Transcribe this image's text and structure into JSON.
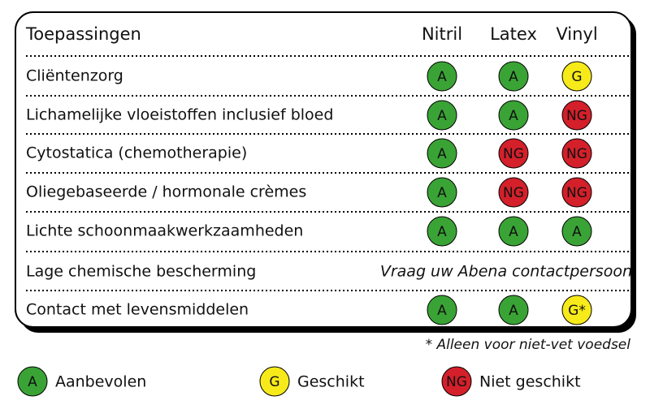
{
  "table": {
    "header": [
      "Toepassingen",
      "Nitril",
      "Latex",
      "Vinyl"
    ],
    "rows": [
      {
        "label": "Cliëntenzorg",
        "cells": [
          {
            "text": "A",
            "color": "#3aa335"
          },
          {
            "text": "A",
            "color": "#3aa335"
          },
          {
            "text": "G",
            "color": "#f7ea1a"
          }
        ]
      },
      {
        "label": "Lichamelijke vloeistoffen inclusief bloed",
        "cells": [
          {
            "text": "A",
            "color": "#3aa335"
          },
          {
            "text": "A",
            "color": "#3aa335"
          },
          {
            "text": "NG",
            "color": "#d3202a"
          }
        ]
      },
      {
        "label": "Cytostatica (chemotherapie)",
        "cells": [
          {
            "text": "A",
            "color": "#3aa335"
          },
          {
            "text": "NG",
            "color": "#d3202a"
          },
          {
            "text": "NG",
            "color": "#d3202a"
          }
        ]
      },
      {
        "label": "Oliegebaseerde / hormonale crèmes",
        "cells": [
          {
            "text": "A",
            "color": "#3aa335"
          },
          {
            "text": "NG",
            "color": "#d3202a"
          },
          {
            "text": "NG",
            "color": "#d3202a"
          }
        ]
      },
      {
        "label": "Lichte schoonmaakwerkzaamheden",
        "cells": [
          {
            "text": "A",
            "color": "#3aa335"
          },
          {
            "text": "A",
            "color": "#3aa335"
          },
          {
            "text": "A",
            "color": "#3aa335"
          }
        ]
      },
      {
        "label": "Lage chemische bescherming",
        "note": "Vraag uw Abena contactpersoon"
      },
      {
        "label": "Contact met levensmiddelen",
        "cells": [
          {
            "text": "A",
            "color": "#3aa335"
          },
          {
            "text": "A",
            "color": "#3aa335"
          },
          {
            "text": "G*",
            "color": "#f7ea1a"
          }
        ]
      }
    ],
    "footnote": "* Alleen voor niet-vet voedsel"
  },
  "legend": [
    {
      "symbol": "A",
      "label": "Aanbevolen",
      "color": "#3aa335"
    },
    {
      "symbol": "G",
      "label": "Geschikt",
      "color": "#f7ea1a"
    },
    {
      "symbol": "NG",
      "label": "Niet geschikt",
      "color": "#d3202a"
    }
  ]
}
